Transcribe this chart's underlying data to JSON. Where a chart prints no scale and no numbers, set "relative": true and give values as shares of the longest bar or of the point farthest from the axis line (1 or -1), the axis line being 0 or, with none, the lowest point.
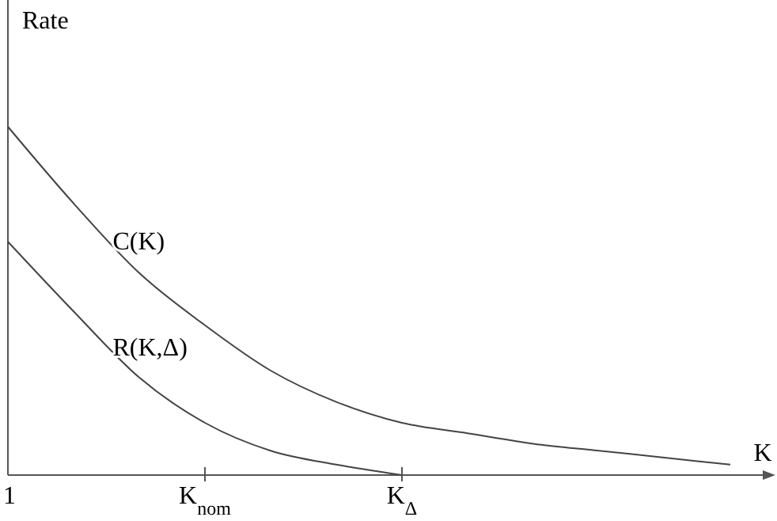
{
  "chart_data": {
    "type": "line",
    "relative": true,
    "xlabel": "K",
    "ylabel": "Rate",
    "legend": false,
    "marker": "none",
    "line_style": "solid",
    "categories": [
      "1",
      null,
      null,
      "K$_{nom}$",
      null,
      null,
      "K$_{Δ}$",
      null,
      null,
      null,
      null,
      null
    ],
    "series": [
      {
        "name": "C(K)",
        "color": "#444444",
        "values": [
          1.0,
          0.78,
          0.58,
          0.43,
          0.3,
          0.21,
          0.15,
          0.12,
          0.09,
          0.07,
          0.05,
          0.03
        ]
      },
      {
        "name": "R(K,Δ)",
        "color": "#444444",
        "values": [
          0.67,
          0.47,
          0.28,
          0.15,
          0.07,
          0.03,
          0,
          null,
          null,
          null,
          null,
          null
        ]
      }
    ]
  }
}
